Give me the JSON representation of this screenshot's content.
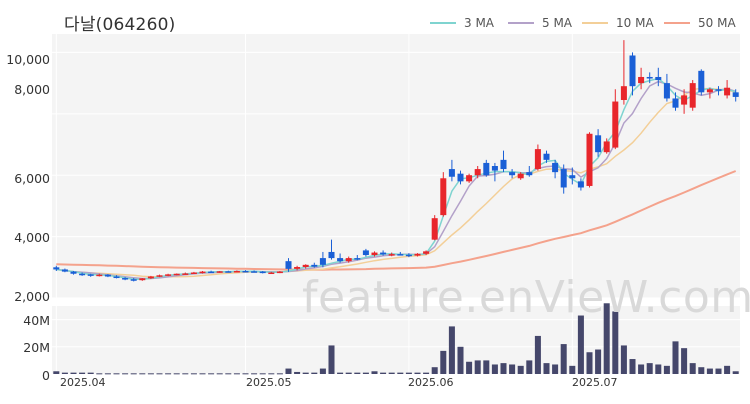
{
  "chart_data": {
    "type": "candlestick",
    "title": "다날(064260)",
    "legend": [
      {
        "name": "3 MA",
        "color": "#7fd4d0"
      },
      {
        "name": "5 MA",
        "color": "#b3a1c9"
      },
      {
        "name": "10 MA",
        "color": "#f3cf98"
      },
      {
        "name": "50 MA",
        "color": "#f4a28c"
      }
    ],
    "price_ticks": [
      "10,000",
      "8,000",
      "6,000",
      "4,000",
      "2,000"
    ],
    "price_tick_values": [
      10000,
      8000,
      6000,
      4000,
      2000
    ],
    "volume_ticks": [
      "40M",
      "20M",
      "0"
    ],
    "volume_tick_values": [
      40000000,
      20000000,
      0
    ],
    "x_tick_labels": [
      "2025.04",
      "2025.05",
      "2025.06",
      "2025.07"
    ],
    "ylim_price": [
      2000,
      10600
    ],
    "ylim_volume": [
      0,
      50000000
    ],
    "watermark": "feature.enVieW.com",
    "colors": {
      "up": "#e8262b",
      "down": "#1a5fd6",
      "volume": "#45476b",
      "grid_bg": "#f4f4f4"
    },
    "dates": [
      "2025-04-01",
      "2025-04-02",
      "2025-04-03",
      "2025-04-04",
      "2025-04-07",
      "2025-04-08",
      "2025-04-09",
      "2025-04-10",
      "2025-04-11",
      "2025-04-14",
      "2025-04-15",
      "2025-04-16",
      "2025-04-17",
      "2025-04-18",
      "2025-04-21",
      "2025-04-22",
      "2025-04-23",
      "2025-04-24",
      "2025-04-25",
      "2025-04-28",
      "2025-04-29",
      "2025-04-30",
      "2025-05-02",
      "2025-05-07",
      "2025-05-08",
      "2025-05-09",
      "2025-05-12",
      "2025-05-13",
      "2025-05-14",
      "2025-05-15",
      "2025-05-16",
      "2025-05-19",
      "2025-05-20",
      "2025-05-21",
      "2025-05-22",
      "2025-05-23",
      "2025-05-26",
      "2025-05-27",
      "2025-05-28",
      "2025-05-29",
      "2025-05-30",
      "2025-06-02",
      "2025-06-04",
      "2025-06-05",
      "2025-06-09",
      "2025-06-10",
      "2025-06-11",
      "2025-06-12",
      "2025-06-13",
      "2025-06-16",
      "2025-06-17",
      "2025-06-18",
      "2025-06-19",
      "2025-06-20",
      "2025-06-23",
      "2025-06-24",
      "2025-06-25",
      "2025-06-26",
      "2025-06-27",
      "2025-06-30",
      "2025-07-01",
      "2025-07-02",
      "2025-07-03",
      "2025-07-04",
      "2025-07-07",
      "2025-07-08",
      "2025-07-09",
      "2025-07-10",
      "2025-07-11",
      "2025-07-14",
      "2025-07-15",
      "2025-07-16",
      "2025-07-17",
      "2025-07-18",
      "2025-07-21",
      "2025-07-22",
      "2025-07-23",
      "2025-07-24",
      "2025-07-25",
      "2025-07-28"
    ],
    "ohlc": [
      [
        3000,
        3050,
        2880,
        2930
      ],
      [
        2930,
        2960,
        2840,
        2860
      ],
      [
        2860,
        2880,
        2760,
        2790
      ],
      [
        2790,
        2830,
        2720,
        2770
      ],
      [
        2770,
        2790,
        2690,
        2740
      ],
      [
        2740,
        2790,
        2700,
        2760
      ],
      [
        2760,
        2780,
        2680,
        2700
      ],
      [
        2700,
        2740,
        2640,
        2650
      ],
      [
        2650,
        2680,
        2580,
        2610
      ],
      [
        2610,
        2650,
        2540,
        2580
      ],
      [
        2580,
        2650,
        2560,
        2640
      ],
      [
        2640,
        2720,
        2620,
        2700
      ],
      [
        2700,
        2760,
        2680,
        2740
      ],
      [
        2740,
        2790,
        2710,
        2770
      ],
      [
        2770,
        2800,
        2740,
        2790
      ],
      [
        2790,
        2830,
        2760,
        2800
      ],
      [
        2800,
        2850,
        2790,
        2830
      ],
      [
        2830,
        2880,
        2800,
        2860
      ],
      [
        2860,
        2890,
        2820,
        2850
      ],
      [
        2850,
        2880,
        2820,
        2870
      ],
      [
        2870,
        2890,
        2840,
        2850
      ],
      [
        2850,
        2900,
        2830,
        2880
      ],
      [
        2880,
        2910,
        2850,
        2870
      ],
      [
        2870,
        2900,
        2840,
        2860
      ],
      [
        2860,
        2880,
        2800,
        2820
      ],
      [
        2820,
        2850,
        2790,
        2830
      ],
      [
        2830,
        2880,
        2810,
        2860
      ],
      [
        3200,
        3300,
        2850,
        2950
      ],
      [
        2950,
        3050,
        2900,
        3010
      ],
      [
        3010,
        3100,
        2960,
        3080
      ],
      [
        3080,
        3150,
        2990,
        3020
      ],
      [
        3300,
        3500,
        3000,
        3080
      ],
      [
        3500,
        3900,
        3250,
        3300
      ],
      [
        3300,
        3450,
        3150,
        3200
      ],
      [
        3200,
        3350,
        3150,
        3300
      ],
      [
        3300,
        3400,
        3230,
        3280
      ],
      [
        3550,
        3600,
        3350,
        3400
      ],
      [
        3400,
        3520,
        3350,
        3480
      ],
      [
        3480,
        3550,
        3380,
        3420
      ],
      [
        3420,
        3480,
        3360,
        3430
      ],
      [
        3430,
        3500,
        3390,
        3410
      ],
      [
        3410,
        3460,
        3330,
        3380
      ],
      [
        3380,
        3460,
        3350,
        3440
      ],
      [
        3440,
        3550,
        3400,
        3520
      ],
      [
        3900,
        4700,
        3880,
        4600
      ],
      [
        4700,
        6100,
        4650,
        5900
      ],
      [
        6200,
        6500,
        5800,
        5950
      ],
      [
        6050,
        6150,
        5700,
        5800
      ],
      [
        5800,
        6050,
        5750,
        6000
      ],
      [
        6000,
        6300,
        5900,
        6200
      ],
      [
        6400,
        6500,
        5950,
        6000
      ],
      [
        6300,
        6400,
        5800,
        6150
      ],
      [
        6500,
        6800,
        6100,
        6200
      ],
      [
        6100,
        6200,
        5900,
        6000
      ],
      [
        5900,
        6100,
        5850,
        6050
      ],
      [
        6100,
        6300,
        5950,
        6000
      ],
      [
        6200,
        7000,
        6150,
        6850
      ],
      [
        6700,
        6800,
        6400,
        6500
      ],
      [
        6400,
        6500,
        5900,
        6100
      ],
      [
        6200,
        6350,
        5400,
        5600
      ],
      [
        6000,
        6250,
        5700,
        5900
      ],
      [
        5800,
        5900,
        5500,
        5600
      ],
      [
        5650,
        7400,
        5600,
        7350
      ],
      [
        7300,
        7500,
        6600,
        6750
      ],
      [
        6750,
        7200,
        6700,
        7100
      ],
      [
        6900,
        8800,
        6850,
        8400
      ],
      [
        8450,
        10400,
        8300,
        8900
      ],
      [
        9900,
        10000,
        8600,
        8900
      ],
      [
        9000,
        9500,
        8800,
        9200
      ],
      [
        9200,
        9350,
        9000,
        9150
      ],
      [
        9200,
        9500,
        8900,
        9100
      ],
      [
        9000,
        9300,
        8400,
        8500
      ],
      [
        8500,
        8700,
        8100,
        8200
      ],
      [
        8300,
        8800,
        8000,
        8600
      ],
      [
        8200,
        9100,
        8100,
        9000
      ],
      [
        9400,
        9450,
        8600,
        8700
      ],
      [
        8700,
        8850,
        8500,
        8800
      ],
      [
        8800,
        8900,
        8600,
        8750
      ],
      [
        8600,
        9100,
        8500,
        8850
      ],
      [
        8700,
        8800,
        8400,
        8550
      ]
    ],
    "volume_millions": [
      2,
      1,
      1,
      1,
      1,
      0.5,
      0.5,
      0.5,
      0.5,
      0.5,
      0.5,
      0.5,
      0.5,
      0.5,
      0.5,
      0.5,
      0.5,
      0.5,
      0.5,
      0.5,
      0.5,
      0.5,
      0.5,
      0.5,
      0.5,
      0.5,
      0.5,
      4,
      1.5,
      1,
      1,
      4,
      21,
      1,
      1,
      1,
      1,
      2,
      1,
      1,
      1,
      1,
      1,
      1,
      5,
      17,
      35,
      20,
      9,
      10,
      10,
      7,
      8,
      7,
      6,
      10,
      28,
      8,
      7,
      22,
      6,
      43,
      16,
      18,
      52,
      46,
      21,
      11,
      7,
      8,
      7,
      6,
      24,
      19,
      8,
      5,
      4,
      4,
      6,
      2
    ]
  }
}
